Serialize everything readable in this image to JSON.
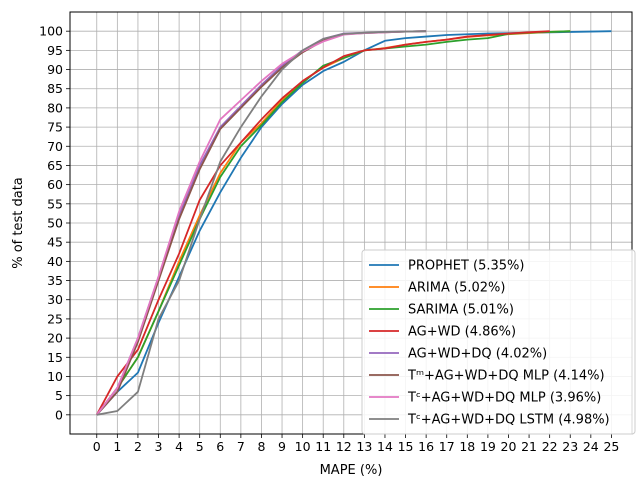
{
  "chart_data": {
    "type": "line",
    "xlabel": "MAPE (%)",
    "ylabel": "% of test data",
    "xlim": [
      -1.3,
      26.0
    ],
    "ylim": [
      -5,
      105
    ],
    "xticks": [
      "0",
      "1",
      "2",
      "3",
      "4",
      "5",
      "6",
      "7",
      "8",
      "9",
      "10",
      "11",
      "12",
      "13",
      "14",
      "15",
      "16",
      "17",
      "18",
      "19",
      "20",
      "21",
      "22",
      "23",
      "24",
      "25"
    ],
    "yticks": [
      "0",
      "5",
      "10",
      "15",
      "20",
      "25",
      "30",
      "35",
      "40",
      "45",
      "50",
      "55",
      "60",
      "65",
      "70",
      "75",
      "80",
      "85",
      "90",
      "95",
      "100"
    ],
    "grid": true,
    "legend_position": "lower-right",
    "series": [
      {
        "name": "PROPHET (5.35%)",
        "color": "#1f77b4",
        "x": [
          0,
          1,
          2,
          3,
          4,
          5,
          6,
          7,
          8,
          9,
          10,
          11,
          12,
          13,
          14,
          15,
          16,
          17,
          18,
          19,
          20,
          21,
          22,
          23,
          24,
          25
        ],
        "y": [
          0,
          6,
          11,
          24,
          36,
          48,
          58,
          67,
          75,
          81,
          86,
          89.6,
          92,
          95,
          97.5,
          98.2,
          98.6,
          99,
          99.2,
          99.4,
          99.5,
          99.6,
          99.7,
          99.8,
          99.9,
          100
        ]
      },
      {
        "name": "ARIMA (5.02%)",
        "color": "#ff7f0e",
        "x": [
          0,
          1,
          2,
          3,
          4,
          5,
          6,
          7,
          8,
          9,
          10,
          11,
          12,
          13,
          14,
          15,
          16,
          17,
          18,
          19,
          20,
          21,
          22,
          23
        ],
        "y": [
          0,
          7,
          15,
          27,
          40,
          52,
          63,
          71,
          76,
          82,
          87,
          90.5,
          93,
          95,
          95.6,
          96.5,
          97.2,
          97.8,
          98.5,
          98.9,
          99.2,
          99.5,
          99.8,
          100
        ]
      },
      {
        "name": "SARIMA (5.01%)",
        "color": "#2ca02c",
        "x": [
          0,
          1,
          2,
          3,
          4,
          5,
          6,
          7,
          8,
          9,
          10,
          11,
          12,
          13,
          14,
          15,
          16,
          17,
          18,
          19,
          20,
          21,
          22,
          23
        ],
        "y": [
          0,
          7,
          15,
          27,
          39,
          51,
          62,
          70,
          75.5,
          81.5,
          86.5,
          91,
          93,
          95,
          95.5,
          96,
          96.5,
          97.2,
          97.8,
          98.2,
          99.3,
          99.6,
          99.8,
          100
        ]
      },
      {
        "name": "AG+WD (4.86%)",
        "color": "#d62728",
        "x": [
          0,
          1,
          2,
          3,
          4,
          5,
          6,
          7,
          8,
          9,
          10,
          11,
          12,
          13,
          14,
          15,
          16,
          17,
          18,
          19,
          20,
          21,
          22
        ],
        "y": [
          0,
          10,
          17,
          30,
          42,
          56,
          65,
          71,
          77,
          82.5,
          87,
          90.5,
          93.5,
          95,
          95.5,
          96.5,
          97.2,
          97.8,
          98.6,
          99,
          99.4,
          99.7,
          100
        ]
      },
      {
        "name": "AG+WD+DQ (4.02%)",
        "color": "#9467bd",
        "x": [
          0,
          1,
          2,
          3,
          4,
          5,
          6,
          7,
          8,
          9,
          10,
          11,
          12,
          13,
          14,
          15,
          16
        ],
        "y": [
          0,
          7,
          20,
          36,
          52,
          65,
          75,
          80.5,
          86,
          91,
          95,
          98,
          99.4,
          99.6,
          99.8,
          99.9,
          100
        ]
      },
      {
        "name": "Tᵐ+AG+WD+DQ MLP (4.14%)",
        "color": "#8c564b",
        "x": [
          0,
          1,
          2,
          3,
          4,
          5,
          6,
          7,
          8,
          9,
          10,
          11,
          12,
          13,
          14,
          15,
          16
        ],
        "y": [
          0,
          6,
          19,
          35,
          51,
          64,
          74.5,
          80,
          85.5,
          90.5,
          94.5,
          97.5,
          99.2,
          99.5,
          99.7,
          99.9,
          100
        ]
      },
      {
        "name": "Tᶜ+AG+WD+DQ MLP (3.96%)",
        "color": "#e377c2",
        "x": [
          0,
          1,
          2,
          3,
          4,
          5,
          6,
          7,
          8,
          9,
          10,
          11,
          12,
          13,
          14,
          15,
          16
        ],
        "y": [
          0,
          7,
          20,
          36,
          53,
          66,
          77,
          82,
          87,
          91.5,
          94.8,
          97.3,
          99.1,
          99.5,
          99.7,
          99.9,
          100
        ]
      },
      {
        "name": "Tᶜ+AG+WD+DQ LSTM (4.98%)",
        "color": "#7f7f7f",
        "x": [
          0,
          1,
          2,
          3,
          4,
          5,
          6,
          7,
          8,
          9,
          10,
          11,
          12,
          13,
          14,
          15,
          16
        ],
        "y": [
          0,
          1,
          6,
          25,
          35,
          51,
          66,
          75,
          83,
          90,
          95,
          98,
          99.3,
          99.6,
          99.8,
          99.9,
          100
        ]
      }
    ]
  }
}
